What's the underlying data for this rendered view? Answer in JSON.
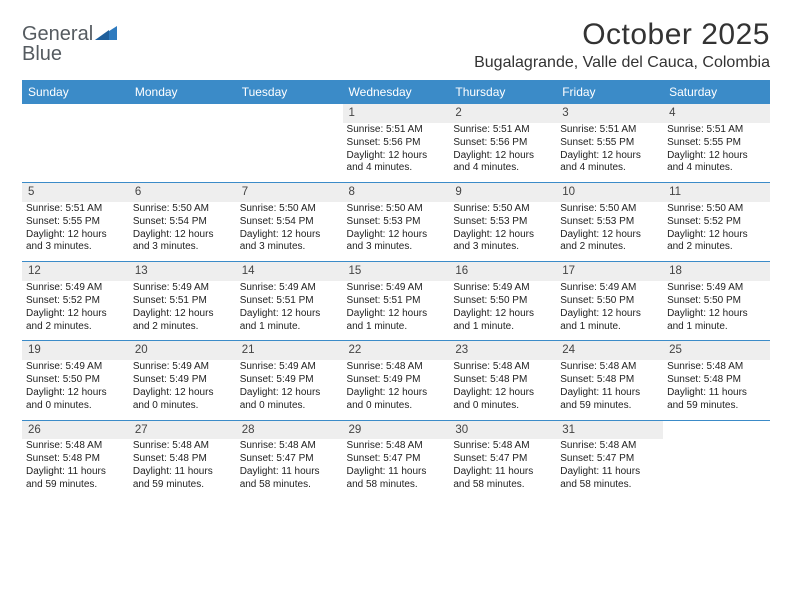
{
  "brand": {
    "name_a": "General",
    "name_b": "Blue"
  },
  "title": "October 2025",
  "location": "Bugalagrande, Valle del Cauca, Colombia",
  "colors": {
    "header_bg": "#3b8bc8",
    "header_text": "#ffffff",
    "daynum_bg": "#eeeeee",
    "brand_gray": "#555b60",
    "brand_blue": "#2f7bbf"
  },
  "day_headers": [
    "Sunday",
    "Monday",
    "Tuesday",
    "Wednesday",
    "Thursday",
    "Friday",
    "Saturday"
  ],
  "weeks": [
    {
      "nums": [
        "",
        "",
        "",
        "1",
        "2",
        "3",
        "4"
      ],
      "cells": [
        null,
        null,
        null,
        {
          "sunrise": "Sunrise: 5:51 AM",
          "sunset": "Sunset: 5:56 PM",
          "day1": "Daylight: 12 hours",
          "day2": "and 4 minutes."
        },
        {
          "sunrise": "Sunrise: 5:51 AM",
          "sunset": "Sunset: 5:56 PM",
          "day1": "Daylight: 12 hours",
          "day2": "and 4 minutes."
        },
        {
          "sunrise": "Sunrise: 5:51 AM",
          "sunset": "Sunset: 5:55 PM",
          "day1": "Daylight: 12 hours",
          "day2": "and 4 minutes."
        },
        {
          "sunrise": "Sunrise: 5:51 AM",
          "sunset": "Sunset: 5:55 PM",
          "day1": "Daylight: 12 hours",
          "day2": "and 4 minutes."
        }
      ]
    },
    {
      "nums": [
        "5",
        "6",
        "7",
        "8",
        "9",
        "10",
        "11"
      ],
      "cells": [
        {
          "sunrise": "Sunrise: 5:51 AM",
          "sunset": "Sunset: 5:55 PM",
          "day1": "Daylight: 12 hours",
          "day2": "and 3 minutes."
        },
        {
          "sunrise": "Sunrise: 5:50 AM",
          "sunset": "Sunset: 5:54 PM",
          "day1": "Daylight: 12 hours",
          "day2": "and 3 minutes."
        },
        {
          "sunrise": "Sunrise: 5:50 AM",
          "sunset": "Sunset: 5:54 PM",
          "day1": "Daylight: 12 hours",
          "day2": "and 3 minutes."
        },
        {
          "sunrise": "Sunrise: 5:50 AM",
          "sunset": "Sunset: 5:53 PM",
          "day1": "Daylight: 12 hours",
          "day2": "and 3 minutes."
        },
        {
          "sunrise": "Sunrise: 5:50 AM",
          "sunset": "Sunset: 5:53 PM",
          "day1": "Daylight: 12 hours",
          "day2": "and 3 minutes."
        },
        {
          "sunrise": "Sunrise: 5:50 AM",
          "sunset": "Sunset: 5:53 PM",
          "day1": "Daylight: 12 hours",
          "day2": "and 2 minutes."
        },
        {
          "sunrise": "Sunrise: 5:50 AM",
          "sunset": "Sunset: 5:52 PM",
          "day1": "Daylight: 12 hours",
          "day2": "and 2 minutes."
        }
      ]
    },
    {
      "nums": [
        "12",
        "13",
        "14",
        "15",
        "16",
        "17",
        "18"
      ],
      "cells": [
        {
          "sunrise": "Sunrise: 5:49 AM",
          "sunset": "Sunset: 5:52 PM",
          "day1": "Daylight: 12 hours",
          "day2": "and 2 minutes."
        },
        {
          "sunrise": "Sunrise: 5:49 AM",
          "sunset": "Sunset: 5:51 PM",
          "day1": "Daylight: 12 hours",
          "day2": "and 2 minutes."
        },
        {
          "sunrise": "Sunrise: 5:49 AM",
          "sunset": "Sunset: 5:51 PM",
          "day1": "Daylight: 12 hours",
          "day2": "and 1 minute."
        },
        {
          "sunrise": "Sunrise: 5:49 AM",
          "sunset": "Sunset: 5:51 PM",
          "day1": "Daylight: 12 hours",
          "day2": "and 1 minute."
        },
        {
          "sunrise": "Sunrise: 5:49 AM",
          "sunset": "Sunset: 5:50 PM",
          "day1": "Daylight: 12 hours",
          "day2": "and 1 minute."
        },
        {
          "sunrise": "Sunrise: 5:49 AM",
          "sunset": "Sunset: 5:50 PM",
          "day1": "Daylight: 12 hours",
          "day2": "and 1 minute."
        },
        {
          "sunrise": "Sunrise: 5:49 AM",
          "sunset": "Sunset: 5:50 PM",
          "day1": "Daylight: 12 hours",
          "day2": "and 1 minute."
        }
      ]
    },
    {
      "nums": [
        "19",
        "20",
        "21",
        "22",
        "23",
        "24",
        "25"
      ],
      "cells": [
        {
          "sunrise": "Sunrise: 5:49 AM",
          "sunset": "Sunset: 5:50 PM",
          "day1": "Daylight: 12 hours",
          "day2": "and 0 minutes."
        },
        {
          "sunrise": "Sunrise: 5:49 AM",
          "sunset": "Sunset: 5:49 PM",
          "day1": "Daylight: 12 hours",
          "day2": "and 0 minutes."
        },
        {
          "sunrise": "Sunrise: 5:49 AM",
          "sunset": "Sunset: 5:49 PM",
          "day1": "Daylight: 12 hours",
          "day2": "and 0 minutes."
        },
        {
          "sunrise": "Sunrise: 5:48 AM",
          "sunset": "Sunset: 5:49 PM",
          "day1": "Daylight: 12 hours",
          "day2": "and 0 minutes."
        },
        {
          "sunrise": "Sunrise: 5:48 AM",
          "sunset": "Sunset: 5:48 PM",
          "day1": "Daylight: 12 hours",
          "day2": "and 0 minutes."
        },
        {
          "sunrise": "Sunrise: 5:48 AM",
          "sunset": "Sunset: 5:48 PM",
          "day1": "Daylight: 11 hours",
          "day2": "and 59 minutes."
        },
        {
          "sunrise": "Sunrise: 5:48 AM",
          "sunset": "Sunset: 5:48 PM",
          "day1": "Daylight: 11 hours",
          "day2": "and 59 minutes."
        }
      ]
    },
    {
      "nums": [
        "26",
        "27",
        "28",
        "29",
        "30",
        "31",
        ""
      ],
      "cells": [
        {
          "sunrise": "Sunrise: 5:48 AM",
          "sunset": "Sunset: 5:48 PM",
          "day1": "Daylight: 11 hours",
          "day2": "and 59 minutes."
        },
        {
          "sunrise": "Sunrise: 5:48 AM",
          "sunset": "Sunset: 5:48 PM",
          "day1": "Daylight: 11 hours",
          "day2": "and 59 minutes."
        },
        {
          "sunrise": "Sunrise: 5:48 AM",
          "sunset": "Sunset: 5:47 PM",
          "day1": "Daylight: 11 hours",
          "day2": "and 58 minutes."
        },
        {
          "sunrise": "Sunrise: 5:48 AM",
          "sunset": "Sunset: 5:47 PM",
          "day1": "Daylight: 11 hours",
          "day2": "and 58 minutes."
        },
        {
          "sunrise": "Sunrise: 5:48 AM",
          "sunset": "Sunset: 5:47 PM",
          "day1": "Daylight: 11 hours",
          "day2": "and 58 minutes."
        },
        {
          "sunrise": "Sunrise: 5:48 AM",
          "sunset": "Sunset: 5:47 PM",
          "day1": "Daylight: 11 hours",
          "day2": "and 58 minutes."
        },
        null
      ]
    }
  ]
}
